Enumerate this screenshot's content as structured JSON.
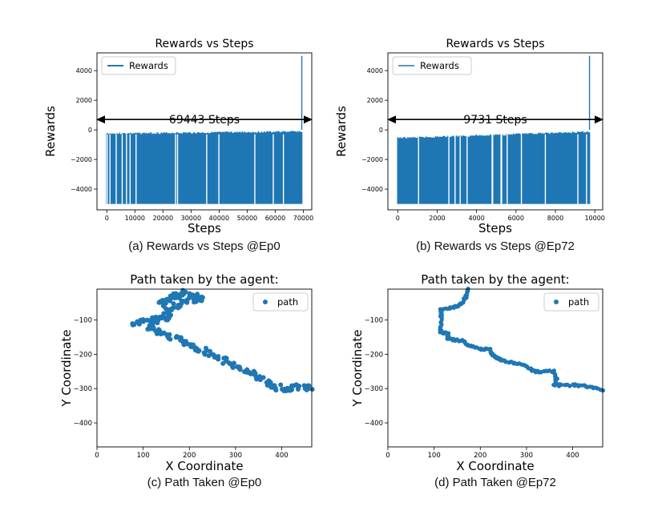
{
  "chart_data": [
    {
      "type": "bar",
      "title": "Rewards vs Steps",
      "xlabel": "Steps",
      "ylabel": "Rewards",
      "caption": "(a) Rewards vs Steps @Ep0",
      "legend": [
        "Rewards"
      ],
      "legend_position": "top-left",
      "xlim": [
        -3500,
        73000
      ],
      "ylim": [
        -5400,
        5200
      ],
      "xticks": [
        0,
        10000,
        20000,
        30000,
        40000,
        50000,
        60000,
        70000
      ],
      "yticks": [
        -4000,
        -2000,
        0,
        2000,
        4000
      ],
      "annotation": "69443 Steps",
      "series": [
        {
          "name": "Rewards",
          "total_steps": 69443,
          "min": -5000,
          "typical_max_start": -200,
          "typical_max_end": -60,
          "final_spike": 5000,
          "color": "#1f77b4"
        }
      ]
    },
    {
      "type": "bar",
      "title": "Rewards vs Steps",
      "xlabel": "Steps",
      "ylabel": "Rewards",
      "caption": "(b) Rewards vs Steps @Ep72",
      "legend": [
        "Rewards"
      ],
      "legend_position": "top-left",
      "xlim": [
        -500,
        10400
      ],
      "ylim": [
        -5400,
        5200
      ],
      "xticks": [
        0,
        2000,
        4000,
        6000,
        8000,
        10000
      ],
      "yticks": [
        -4000,
        -2000,
        0,
        2000,
        4000
      ],
      "annotation": "9731 Steps",
      "series": [
        {
          "name": "Rewards",
          "total_steps": 9731,
          "min": -5000,
          "typical_max_start": -500,
          "typical_max_end": -80,
          "final_spike": 5000,
          "color": "#1f77b4"
        }
      ]
    },
    {
      "type": "scatter",
      "title": "Path taken by the agent:",
      "xlabel": "X Coordinate",
      "ylabel": "Y Coordinate",
      "caption": "(c) Path Taken @Ep0",
      "legend": [
        "path"
      ],
      "legend_position": "top-right",
      "xlim": [
        0,
        465
      ],
      "ylim": [
        -470,
        -10
      ],
      "xticks": [
        0,
        100,
        200,
        300,
        400
      ],
      "yticks": [
        -400,
        -300,
        -200,
        -100
      ],
      "series": [
        {
          "name": "path",
          "color": "#1f77b4",
          "points": [
            [
              75,
              -115
            ],
            [
              95,
              -105
            ],
            [
              130,
              -100
            ],
            [
              155,
              -85
            ],
            [
              140,
              -50
            ],
            [
              170,
              -30
            ],
            [
              190,
              -20
            ],
            [
              220,
              -35
            ],
            [
              225,
              -40
            ],
            [
              190,
              -45
            ],
            [
              170,
              -60
            ],
            [
              150,
              -90
            ],
            [
              120,
              -110
            ],
            [
              110,
              -125
            ],
            [
              150,
              -145
            ],
            [
              190,
              -165
            ],
            [
              220,
              -185
            ],
            [
              260,
              -205
            ],
            [
              300,
              -235
            ],
            [
              330,
              -250
            ],
            [
              350,
              -265
            ],
            [
              370,
              -285
            ],
            [
              385,
              -295
            ],
            [
              410,
              -300
            ],
            [
              440,
              -295
            ],
            [
              465,
              -300
            ]
          ]
        }
      ]
    },
    {
      "type": "scatter",
      "title": "Path taken by the agent:",
      "xlabel": "X Coordinate",
      "ylabel": "Y Coordinate",
      "caption": "(d) Path Taken @Ep72",
      "legend": [
        "path"
      ],
      "legend_position": "top-right",
      "xlim": [
        0,
        465
      ],
      "ylim": [
        -470,
        -10
      ],
      "xticks": [
        0,
        100,
        200,
        300,
        400
      ],
      "yticks": [
        -400,
        -300,
        -200,
        -100
      ],
      "series": [
        {
          "name": "path",
          "color": "#1f77b4",
          "points": [
            [
              175,
              -10
            ],
            [
              170,
              -30
            ],
            [
              160,
              -50
            ],
            [
              150,
              -60
            ],
            [
              115,
              -70
            ],
            [
              115,
              -90
            ],
            [
              115,
              -120
            ],
            [
              115,
              -135
            ],
            [
              130,
              -140
            ],
            [
              130,
              -155
            ],
            [
              160,
              -160
            ],
            [
              175,
              -175
            ],
            [
              200,
              -185
            ],
            [
              220,
              -185
            ],
            [
              225,
              -200
            ],
            [
              235,
              -210
            ],
            [
              250,
              -220
            ],
            [
              275,
              -225
            ],
            [
              300,
              -235
            ],
            [
              320,
              -250
            ],
            [
              360,
              -250
            ],
            [
              365,
              -270
            ],
            [
              360,
              -290
            ],
            [
              410,
              -290
            ],
            [
              440,
              -295
            ],
            [
              465,
              -305
            ]
          ]
        }
      ]
    }
  ]
}
